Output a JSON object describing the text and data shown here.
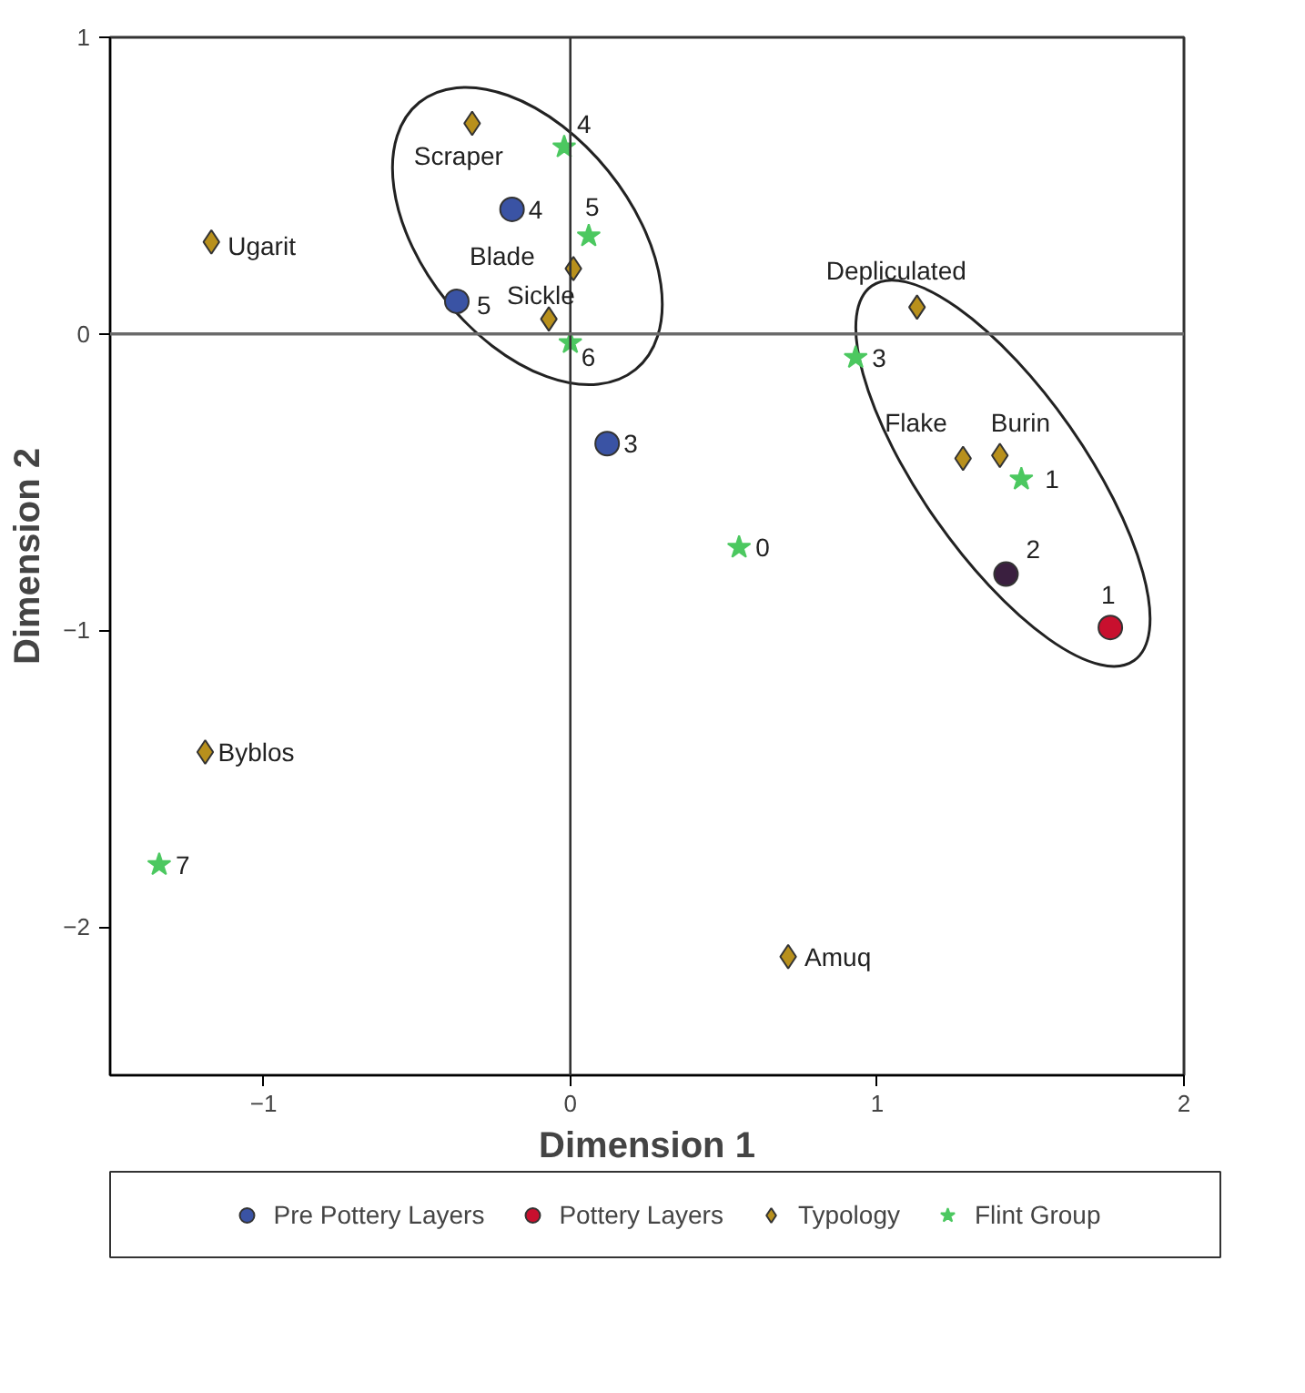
{
  "chart_data": {
    "type": "scatter",
    "xlabel": "Dimension 1",
    "ylabel": "Dimension 2",
    "xlim": [
      -1.5,
      2
    ],
    "ylim": [
      -2.5,
      1
    ],
    "xticks": [
      -1,
      0,
      1,
      2
    ],
    "yticks": [
      -2,
      -1,
      0,
      1
    ],
    "grid": false,
    "legend": "bottom",
    "ref_lines": [
      {
        "axis": "x",
        "value": 0,
        "color": "#333333"
      },
      {
        "axis": "y",
        "value": 0,
        "color": "#6a6a6a"
      }
    ],
    "series": [
      {
        "name": "Pre Pottery Layers",
        "color": "#3a53a4",
        "marker": "circle",
        "x": [
          -0.19,
          -0.37,
          0.12
        ],
        "values": [
          0.42,
          0.11,
          -0.37
        ]
      },
      {
        "name": "Pottery Layers",
        "color": "#c8102e",
        "colors": [
          "#3a1f3f",
          "#c8102e"
        ],
        "marker": "circle",
        "x": [
          1.42,
          1.76
        ],
        "values": [
          -0.81,
          -0.99
        ]
      },
      {
        "name": "Typology",
        "color": "#b8901c",
        "marker": "diamond",
        "x": [
          -1.17,
          -0.32,
          0.01,
          -0.07,
          1.13,
          1.28,
          1.4,
          -1.19,
          0.71
        ],
        "values": [
          0.31,
          0.71,
          0.22,
          0.05,
          0.09,
          -0.42,
          -0.41,
          -1.41,
          -2.1
        ]
      },
      {
        "name": "Flint Group",
        "color": "#4cc860",
        "marker": "star",
        "x": [
          -0.02,
          0.06,
          0.0,
          0.93,
          1.47,
          0.55,
          -1.34
        ],
        "values": [
          0.63,
          0.33,
          -0.03,
          -0.08,
          -0.49,
          -0.72,
          -1.79
        ]
      }
    ],
    "annotations": [
      {
        "text": "4",
        "x": -0.19,
        "y": 0.42
      },
      {
        "text": "5",
        "x": -0.37,
        "y": 0.11
      },
      {
        "text": "3",
        "x": 0.12,
        "y": -0.37
      },
      {
        "text": "2",
        "x": 1.42,
        "y": -0.81
      },
      {
        "text": "1",
        "x": 1.76,
        "y": -0.99
      },
      {
        "text": "Ugarit",
        "x": -1.17,
        "y": 0.31
      },
      {
        "text": "Scraper",
        "x": -0.32,
        "y": 0.71
      },
      {
        "text": "Blade",
        "x": 0.01,
        "y": 0.22
      },
      {
        "text": "Sickle",
        "x": -0.07,
        "y": 0.05
      },
      {
        "text": "Depliculated",
        "x": 1.13,
        "y": 0.09
      },
      {
        "text": "Flake",
        "x": 1.28,
        "y": -0.42
      },
      {
        "text": "Burin",
        "x": 1.4,
        "y": -0.41
      },
      {
        "text": "Byblos",
        "x": -1.19,
        "y": -1.41
      },
      {
        "text": "Amuq",
        "x": 0.71,
        "y": -2.1
      },
      {
        "text": "4",
        "x": -0.02,
        "y": 0.63
      },
      {
        "text": "5",
        "x": 0.06,
        "y": 0.33
      },
      {
        "text": "6",
        "x": 0.0,
        "y": -0.03
      },
      {
        "text": "3",
        "x": 0.93,
        "y": -0.08
      },
      {
        "text": "1",
        "x": 1.47,
        "y": -0.49
      },
      {
        "text": "0",
        "x": 0.55,
        "y": -0.72
      },
      {
        "text": "7",
        "x": -1.34,
        "y": -1.79
      }
    ]
  }
}
